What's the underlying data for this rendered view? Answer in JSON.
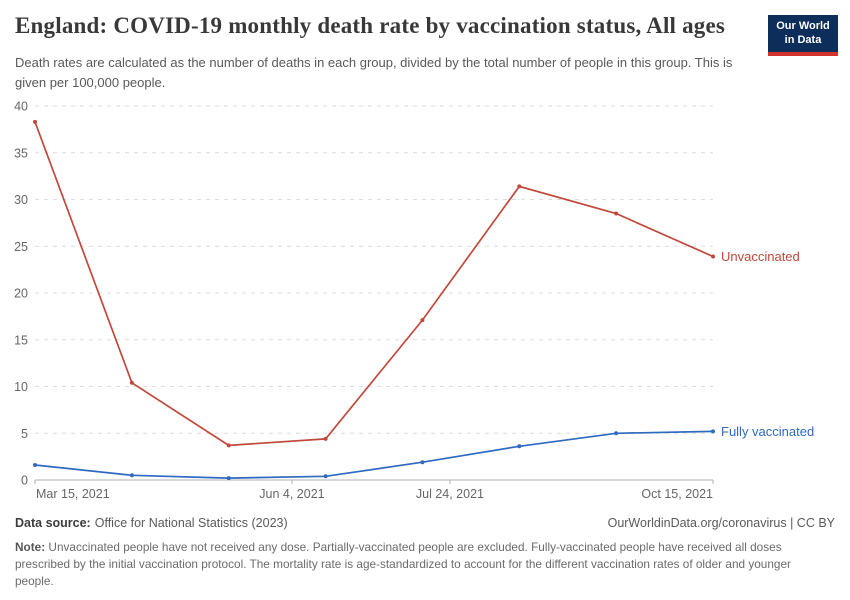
{
  "header": {
    "logo": {
      "line1": "Our World",
      "line2": "in Data",
      "bg_color": "#0d2d5a",
      "bar_color": "#d0342c"
    }
  },
  "chart_data": {
    "type": "line",
    "title": "England: COVID-19 monthly death rate by vaccination status, All ages",
    "subtitle": "Death rates are calculated as the number of deaths in each group, divided by the total number of people in this group. This is given per 100,000 people.",
    "xlabel": "",
    "ylabel": "",
    "ylim": [
      0,
      40
    ],
    "y_tick_step": 5,
    "grid": "horizontal-dashed",
    "legend_position": "end-of-line-labels",
    "grid_color": "#dcdcdc",
    "axis_color": "#b0b0b0",
    "tick_label_color": "#666666",
    "x_ticks": [
      {
        "label": "Mar 15, 2021",
        "frac": 0,
        "anchor": "start"
      },
      {
        "label": "Jun 4, 2021",
        "frac": 0.379,
        "anchor": "middle"
      },
      {
        "label": "Jul 24, 2021",
        "frac": 0.612,
        "anchor": "middle"
      },
      {
        "label": "Oct 15, 2021",
        "frac": 1,
        "anchor": "end"
      }
    ],
    "series": [
      {
        "name": "Unvaccinated",
        "slug": "unvaccinated",
        "color": "#c0493b",
        "values": [
          38.3,
          10.4,
          3.7,
          4.4,
          17.1,
          31.4,
          28.5,
          23.9
        ]
      },
      {
        "name": "Fully vaccinated",
        "slug": "fully-vaccinated",
        "color": "#2f6ac0",
        "values": [
          1.6,
          0.5,
          0.2,
          0.4,
          1.9,
          3.6,
          5.0,
          5.2
        ]
      }
    ]
  },
  "footer": {
    "data_source_label": "Data source:",
    "data_source_value": "Office for National Statistics (2023)",
    "attribution": "OurWorldinData.org/coronavirus | CC BY",
    "note_label": "Note:",
    "note_text": " Unvaccinated people have not received any dose. Partially-vaccinated people are excluded. Fully-vaccinated people have received all doses prescribed by the initial vaccination protocol. The mortality rate is age-standardized to account for the different vaccination rates of older and younger people."
  }
}
